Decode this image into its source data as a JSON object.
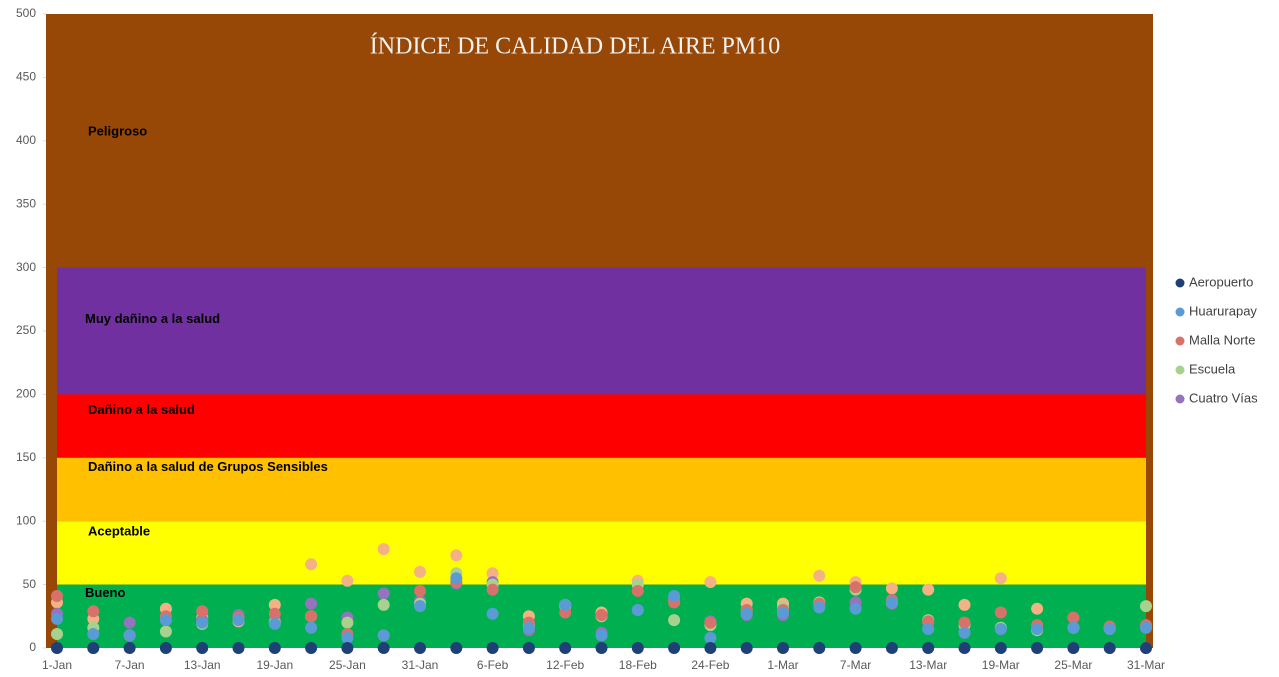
{
  "chart_data": {
    "type": "scatter",
    "title": "ÍNDICE DE CALIDAD DEL AIRE PM10",
    "categories": [
      "1-Jan",
      null,
      "7-Jan",
      null,
      "13-Jan",
      null,
      "19-Jan",
      null,
      "25-Jan",
      null,
      "31-Jan",
      null,
      "6-Feb",
      null,
      "12-Feb",
      null,
      "18-Feb",
      null,
      "24-Feb",
      null,
      "1-Mar",
      null,
      "7-Mar",
      null,
      "13-Mar",
      null,
      "19-Mar",
      null,
      "25-Mar",
      null,
      "31-Mar"
    ],
    "ylim": [
      0,
      500
    ],
    "yticks": [
      0,
      50,
      100,
      150,
      200,
      250,
      300,
      350,
      400,
      450,
      500
    ],
    "bands": [
      {
        "label": "Peligroso",
        "from": 300,
        "to": 500,
        "color": "#974806"
      },
      {
        "label": "Muy dañino a la salud",
        "from": 200,
        "to": 300,
        "color": "#7030a0"
      },
      {
        "label": "Dañino a la salud",
        "from": 150,
        "to": 200,
        "color": "#ff0000"
      },
      {
        "label": "Dañino a la salud de Grupos Sensibles",
        "from": 100,
        "to": 150,
        "color": "#ffc000"
      },
      {
        "label": "Aceptable",
        "from": 50,
        "to": 100,
        "color": "#ffff00"
      },
      {
        "label": "Bueno",
        "from": 0,
        "to": 50,
        "color": "#00b050"
      }
    ],
    "series": [
      {
        "name": null,
        "color": "#f4b183",
        "values": [
          36,
          23,
          10,
          31,
          24,
          21,
          34,
          66,
          53,
          78,
          60,
          73,
          59,
          25,
          34,
          28,
          53,
          38,
          52,
          35,
          35,
          57,
          52,
          47,
          46,
          34,
          55,
          31,
          0,
          0,
          0
        ]
      },
      {
        "name": "Cuatro Vías",
        "color": "#9673bd",
        "values": [
          27,
          0,
          20,
          22,
          22,
          26,
          22,
          35,
          24,
          43,
          37,
          51,
          52,
          14,
          33,
          12,
          30,
          38,
          21,
          26,
          26,
          33,
          36,
          35,
          20,
          13,
          15,
          15,
          16,
          15,
          16
        ]
      },
      {
        "name": "Escuela",
        "color": "#a9d18e",
        "values": [
          11,
          16,
          10,
          13,
          19,
          22,
          20,
          25,
          20,
          34,
          35,
          59,
          50,
          18,
          33,
          25,
          50,
          22,
          18,
          30,
          32,
          36,
          46,
          36,
          22,
          18,
          16,
          14,
          16,
          16,
          33
        ]
      },
      {
        "name": "Malla Norte",
        "color": "#d9716b",
        "values": [
          41,
          29,
          10,
          25,
          29,
          24,
          27,
          25,
          11,
          10,
          45,
          52,
          46,
          20,
          28,
          26,
          45,
          36,
          20,
          30,
          30,
          35,
          48,
          38,
          21,
          20,
          28,
          18,
          24,
          17,
          18
        ]
      },
      {
        "name": "Huarurapay",
        "color": "#5b9bd5",
        "values": [
          23,
          11,
          10,
          22,
          20,
          22,
          19,
          16,
          8,
          10,
          33,
          55,
          27,
          16,
          34,
          10,
          30,
          41,
          8,
          27,
          28,
          32,
          31,
          36,
          15,
          12,
          15,
          15,
          16,
          15,
          16
        ]
      },
      {
        "name": "Aeropuerto",
        "color": "#1f3f77",
        "values": [
          0,
          0,
          0,
          0,
          0,
          0,
          0,
          0,
          0,
          0,
          0,
          0,
          0,
          0,
          0,
          0,
          0,
          0,
          0,
          0,
          0,
          0,
          0,
          0,
          0,
          0,
          0,
          0,
          0,
          0,
          0
        ]
      }
    ]
  }
}
